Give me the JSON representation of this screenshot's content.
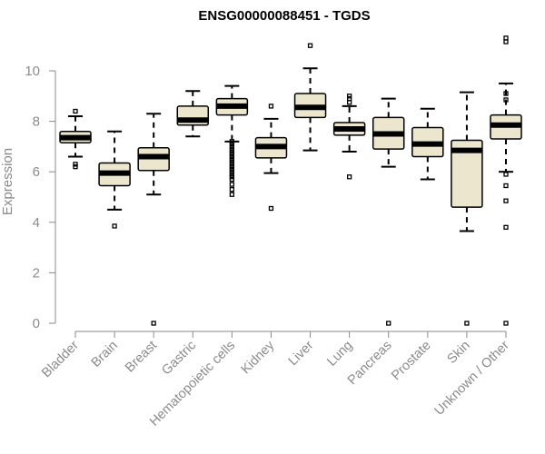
{
  "chart_data": {
    "type": "boxplot",
    "title": "ENSG00000088451 - TGDS",
    "xlabel": "",
    "ylabel": "Expression",
    "ylim": [
      0,
      11.3
    ],
    "yticks": [
      0,
      2,
      4,
      6,
      8,
      10
    ],
    "grid": false,
    "box_fill": "#ede6cf",
    "median_color": "#000000",
    "categories": [
      "Bladder",
      "Brain",
      "Breast",
      "Gastric",
      "Hematopoietic cells",
      "Kidney",
      "Liver",
      "Lung",
      "Pancreas",
      "Prostate",
      "Skin",
      "Unknown / Other"
    ],
    "boxes": [
      {
        "whisker_low": 6.6,
        "q1": 7.15,
        "median": 7.35,
        "q3": 7.6,
        "whisker_high": 8.2,
        "outliers": [
          8.4,
          6.3,
          6.2
        ]
      },
      {
        "whisker_low": 4.5,
        "q1": 5.45,
        "median": 5.95,
        "q3": 6.35,
        "whisker_high": 7.6,
        "outliers": [
          3.85
        ]
      },
      {
        "whisker_low": 5.1,
        "q1": 6.05,
        "median": 6.6,
        "q3": 6.95,
        "whisker_high": 8.3,
        "outliers": [
          0
        ]
      },
      {
        "whisker_low": 7.4,
        "q1": 7.85,
        "median": 8.05,
        "q3": 8.6,
        "whisker_high": 9.2,
        "outliers": []
      },
      {
        "whisker_low": 7.2,
        "q1": 8.25,
        "median": 8.6,
        "q3": 8.9,
        "whisker_high": 9.4,
        "outliers": [
          7.2,
          7.1,
          7.0,
          6.9,
          6.8,
          6.7,
          6.6,
          6.5,
          6.4,
          6.3,
          6.2,
          6.1,
          6.0,
          5.9,
          5.8,
          5.7,
          5.5,
          5.3,
          5.1
        ]
      },
      {
        "whisker_low": 5.95,
        "q1": 6.55,
        "median": 7.0,
        "q3": 7.35,
        "whisker_high": 8.1,
        "outliers": [
          8.6,
          4.55
        ]
      },
      {
        "whisker_low": 6.85,
        "q1": 8.15,
        "median": 8.55,
        "q3": 9.1,
        "whisker_high": 10.1,
        "outliers": [
          11.0
        ]
      },
      {
        "whisker_low": 6.8,
        "q1": 7.45,
        "median": 7.7,
        "q3": 7.95,
        "whisker_high": 8.6,
        "outliers": [
          9.0,
          8.9,
          8.75,
          5.8
        ]
      },
      {
        "whisker_low": 6.2,
        "q1": 6.9,
        "median": 7.5,
        "q3": 8.15,
        "whisker_high": 8.9,
        "outliers": [
          0
        ]
      },
      {
        "whisker_low": 5.7,
        "q1": 6.6,
        "median": 7.1,
        "q3": 7.75,
        "whisker_high": 8.5,
        "outliers": []
      },
      {
        "whisker_low": 3.65,
        "q1": 4.6,
        "median": 6.85,
        "q3": 7.25,
        "whisker_high": 9.15,
        "outliers": [
          0
        ]
      },
      {
        "whisker_low": 6.0,
        "q1": 7.3,
        "median": 7.85,
        "q3": 8.25,
        "whisker_high": 9.5,
        "outliers": [
          11.3,
          11.15,
          9.1,
          8.85,
          5.9,
          5.45,
          4.85,
          3.8,
          0
        ]
      }
    ]
  }
}
